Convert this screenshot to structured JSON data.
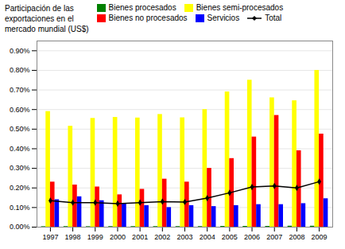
{
  "chart_data": {
    "type": "bar",
    "categories": [
      "1997",
      "1998",
      "1999",
      "2000",
      "2001",
      "2002",
      "2003",
      "2004",
      "2005",
      "2006",
      "2007",
      "2008",
      "2009"
    ],
    "series": [
      {
        "name": "Bienes procesados",
        "color": "#008000",
        "values": [
          0.0025,
          0.003,
          0.0025,
          0.003,
          0.003,
          0.003,
          0.003,
          0.003,
          0.004,
          0.004,
          0.004,
          0.005,
          0.005
        ]
      },
      {
        "name": "Bienes semi-procesados",
        "color": "#FFFF00",
        "values": [
          0.59,
          0.515,
          0.555,
          0.56,
          0.557,
          0.575,
          0.558,
          0.6,
          0.69,
          0.75,
          0.66,
          0.645,
          0.8
        ]
      },
      {
        "name": "Bienes no procesados",
        "color": "#FF0000",
        "values": [
          0.23,
          0.215,
          0.205,
          0.165,
          0.193,
          0.245,
          0.23,
          0.3,
          0.35,
          0.46,
          0.57,
          0.39,
          0.475
        ]
      },
      {
        "name": "Servicios",
        "color": "#0000FF",
        "values": [
          0.14,
          0.155,
          0.135,
          0.12,
          0.11,
          0.1,
          0.11,
          0.105,
          0.11,
          0.115,
          0.115,
          0.12,
          0.145
        ]
      },
      {
        "name": "Total",
        "type": "line",
        "color": "#000000",
        "marker": "diamond",
        "values": [
          0.135,
          0.125,
          0.125,
          0.12,
          0.125,
          0.13,
          0.128,
          0.148,
          0.175,
          0.205,
          0.21,
          0.2,
          0.232
        ]
      }
    ],
    "ylabel": "Participación de las\nexportaciones en el\nmercado mundial (US$)",
    "ylim": [
      0,
      0.95
    ],
    "yticks": [
      {
        "value": 0.0,
        "label": "0.00%"
      },
      {
        "value": 0.1,
        "label": "0.10%"
      },
      {
        "value": 0.2,
        "label": "0.20%"
      },
      {
        "value": 0.3,
        "label": "0.30%"
      },
      {
        "value": 0.4,
        "label": "0.40%"
      },
      {
        "value": 0.5,
        "label": "0.50%"
      },
      {
        "value": 0.6,
        "label": "0.60%"
      },
      {
        "value": 0.7,
        "label": "0.70%"
      },
      {
        "value": 0.8,
        "label": "0.80%"
      },
      {
        "value": 0.9,
        "label": "0.90%"
      }
    ],
    "grid": true,
    "legend": "upper left"
  }
}
